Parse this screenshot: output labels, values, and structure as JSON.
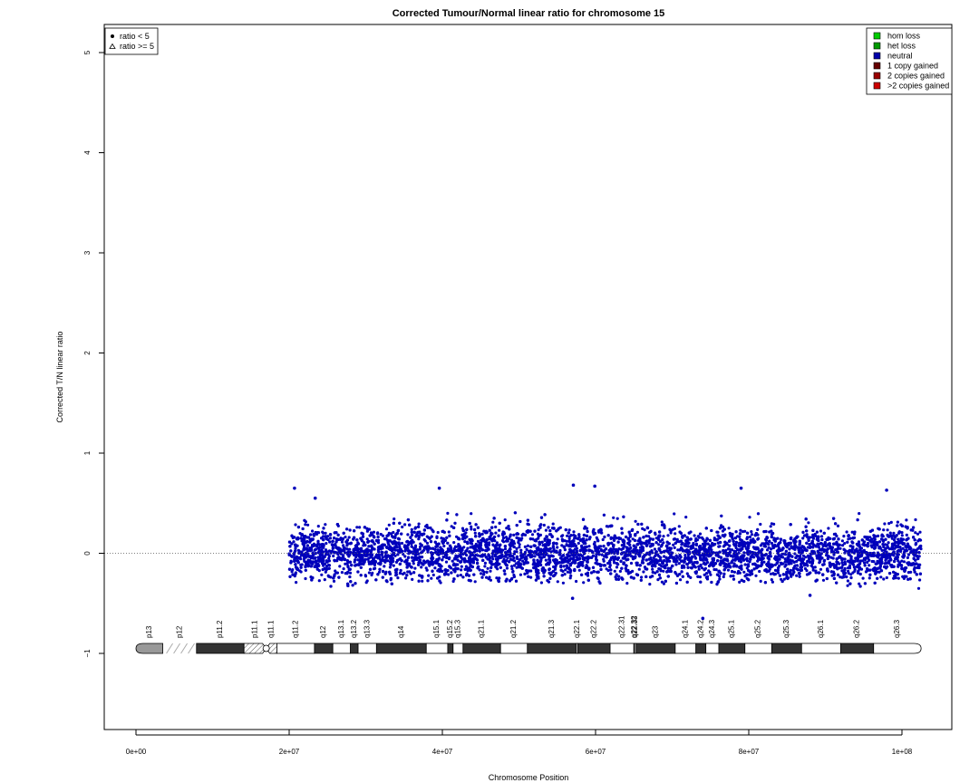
{
  "chart_data": {
    "type": "scatter",
    "title": "Corrected Tumour/Normal linear ratio for chromosome  15",
    "xlabel": "Chromosome Position",
    "ylabel": "Corrected T/N linear ratio",
    "xlim": [
      0,
      102500000
    ],
    "ylim": [
      -1.75,
      5.3
    ],
    "x_ticks": [
      {
        "value": 0,
        "label": "0e+00"
      },
      {
        "value": 20000000,
        "label": "2e+07"
      },
      {
        "value": 40000000,
        "label": "4e+07"
      },
      {
        "value": 60000000,
        "label": "6e+07"
      },
      {
        "value": 80000000,
        "label": "8e+07"
      },
      {
        "value": 100000000,
        "label": "1e+08"
      }
    ],
    "y_ticks": [
      {
        "value": -1,
        "label": "−1"
      },
      {
        "value": 0,
        "label": "0"
      },
      {
        "value": 1,
        "label": "1"
      },
      {
        "value": 2,
        "label": "2"
      },
      {
        "value": 3,
        "label": "3"
      },
      {
        "value": 4,
        "label": "4"
      },
      {
        "value": 5,
        "label": "5"
      }
    ],
    "reference_line": 0,
    "grid": false,
    "series": [
      {
        "name": "neutral",
        "color": "#0000bb",
        "x_range": [
          20000000,
          102500000
        ],
        "band_summary": [
          {
            "x": 20000000,
            "lower": -0.3,
            "upper": 0.35
          },
          {
            "x": 22000000,
            "lower": -0.35,
            "upper": 0.42
          },
          {
            "x": 30000000,
            "lower": -0.32,
            "upper": 0.45
          },
          {
            "x": 40000000,
            "lower": -0.3,
            "upper": 0.48
          },
          {
            "x": 50000000,
            "lower": -0.3,
            "upper": 0.48
          },
          {
            "x": 60000000,
            "lower": -0.3,
            "upper": 0.48
          },
          {
            "x": 70000000,
            "lower": -0.32,
            "upper": 0.45
          },
          {
            "x": 80000000,
            "lower": -0.3,
            "upper": 0.45
          },
          {
            "x": 90000000,
            "lower": -0.3,
            "upper": 0.42
          },
          {
            "x": 102500000,
            "lower": -0.45,
            "upper": 0.4
          }
        ],
        "outliers": [
          {
            "x": 20700000,
            "y": 0.65
          },
          {
            "x": 23400000,
            "y": 0.55
          },
          {
            "x": 39600000,
            "y": 0.65
          },
          {
            "x": 57100000,
            "y": 0.68
          },
          {
            "x": 59900000,
            "y": 0.67
          },
          {
            "x": 79000000,
            "y": 0.65
          },
          {
            "x": 98000000,
            "y": 0.63
          },
          {
            "x": 57000000,
            "y": -0.45
          },
          {
            "x": 88000000,
            "y": -0.42
          },
          {
            "x": 74000000,
            "y": -0.65
          }
        ]
      }
    ],
    "shape_legend": {
      "position": "top-left",
      "items": [
        {
          "shape": "dot",
          "label": "ratio < 5"
        },
        {
          "shape": "triangle",
          "label": "ratio >= 5"
        }
      ]
    },
    "state_legend": {
      "position": "top-right",
      "items": [
        {
          "label": "hom loss",
          "color": "#00cc00"
        },
        {
          "label": "het loss",
          "color": "#009900"
        },
        {
          "label": "neutral",
          "color": "#0000aa"
        },
        {
          "label": "1 copy gained",
          "color": "#660000"
        },
        {
          "label": "2 copies gained",
          "color": "#990000"
        },
        {
          "label": ">2 copies gained",
          "color": "#cc0000"
        }
      ]
    },
    "ideogram": {
      "y": -0.95,
      "bands": [
        {
          "name": "p13",
          "start": 0,
          "end": 3500000,
          "stain": "gvar"
        },
        {
          "name": "p12",
          "start": 3500000,
          "end": 7900000,
          "stain": "stalk"
        },
        {
          "name": "p11.2",
          "start": 7900000,
          "end": 14100000,
          "stain": "gpos50"
        },
        {
          "name": "p11.1",
          "start": 14100000,
          "end": 17000000,
          "stain": "acen"
        },
        {
          "name": "q11.1",
          "start": 17000000,
          "end": 18400000,
          "stain": "acen"
        },
        {
          "name": "q11.2",
          "start": 18400000,
          "end": 23300000,
          "stain": "gneg"
        },
        {
          "name": "q12",
          "start": 23300000,
          "end": 25700000,
          "stain": "gpos50"
        },
        {
          "name": "q13.1",
          "start": 25700000,
          "end": 28000000,
          "stain": "gneg"
        },
        {
          "name": "q13.2",
          "start": 28000000,
          "end": 29000000,
          "stain": "gpos50"
        },
        {
          "name": "q13.3",
          "start": 29000000,
          "end": 31400000,
          "stain": "gneg"
        },
        {
          "name": "q14",
          "start": 31400000,
          "end": 37900000,
          "stain": "gpos50"
        },
        {
          "name": "q15.1",
          "start": 37900000,
          "end": 40700000,
          "stain": "gneg"
        },
        {
          "name": "q15.2",
          "start": 40700000,
          "end": 41400000,
          "stain": "gpos50"
        },
        {
          "name": "q15.3",
          "start": 41400000,
          "end": 42700000,
          "stain": "gneg"
        },
        {
          "name": "q21.1",
          "start": 42700000,
          "end": 47600000,
          "stain": "gpos50"
        },
        {
          "name": "q21.2",
          "start": 47600000,
          "end": 51100000,
          "stain": "gneg"
        },
        {
          "name": "q21.3",
          "start": 51100000,
          "end": 57500000,
          "stain": "gpos50"
        },
        {
          "name": "q22.1",
          "start": 57500000,
          "end": 57700000,
          "stain": "gneg"
        },
        {
          "name": "q22.2",
          "start": 57700000,
          "end": 61900000,
          "stain": "gpos50"
        },
        {
          "name": "q22.31",
          "start": 61900000,
          "end": 65000000,
          "stain": "gneg"
        },
        {
          "name": "q22.32",
          "start": 65000000,
          "end": 65100000,
          "stain": "gpos50"
        },
        {
          "name": "q22.33",
          "start": 65100000,
          "end": 65300000,
          "stain": "gneg"
        },
        {
          "name": "q23",
          "start": 65300000,
          "end": 70400000,
          "stain": "gpos50"
        },
        {
          "name": "q24.1",
          "start": 70400000,
          "end": 73100000,
          "stain": "gneg"
        },
        {
          "name": "q24.2",
          "start": 73100000,
          "end": 74400000,
          "stain": "gpos50"
        },
        {
          "name": "q24.3",
          "start": 74400000,
          "end": 76100000,
          "stain": "gneg"
        },
        {
          "name": "q25.1",
          "start": 76100000,
          "end": 79500000,
          "stain": "gpos50"
        },
        {
          "name": "q25.2",
          "start": 79500000,
          "end": 83000000,
          "stain": "gneg"
        },
        {
          "name": "q25.3",
          "start": 83000000,
          "end": 86900000,
          "stain": "gpos50"
        },
        {
          "name": "q26.1",
          "start": 86900000,
          "end": 92000000,
          "stain": "gneg"
        },
        {
          "name": "q26.2",
          "start": 92000000,
          "end": 96300000,
          "stain": "gpos50"
        },
        {
          "name": "q26.3",
          "start": 96300000,
          "end": 102500000,
          "stain": "gneg"
        }
      ]
    }
  }
}
